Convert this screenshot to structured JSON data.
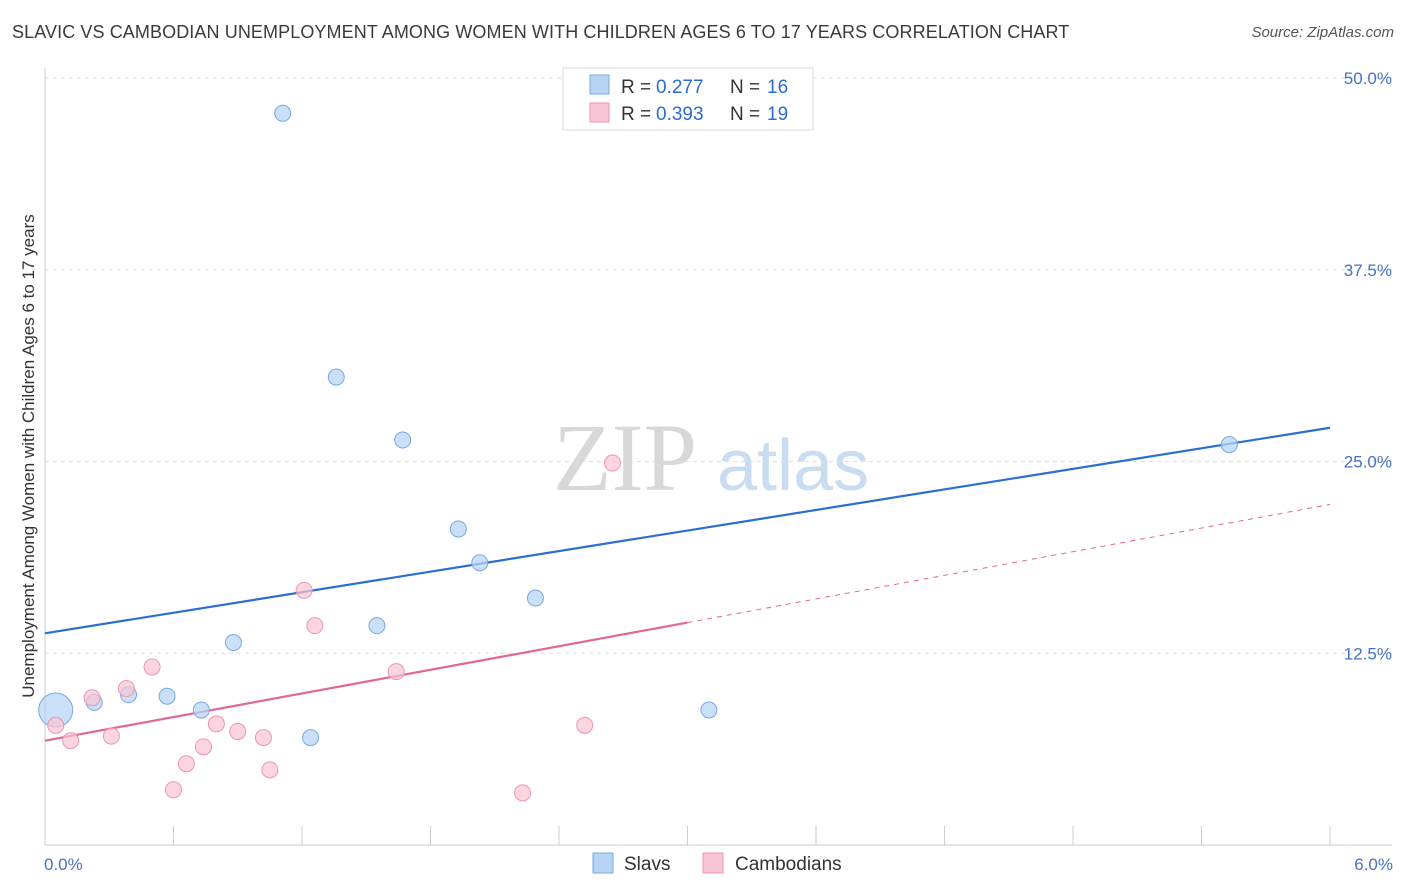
{
  "header": {
    "title": "SLAVIC VS CAMBODIAN UNEMPLOYMENT AMONG WOMEN WITH CHILDREN AGES 6 TO 17 YEARS CORRELATION CHART",
    "source": "Source: ZipAtlas.com"
  },
  "watermark": {
    "zip": "ZIP",
    "atlas": "atlas"
  },
  "legend_top": {
    "rows": [
      {
        "r_label": "R =",
        "r_value": "0.277",
        "n_label": "N =",
        "n_value": "16"
      },
      {
        "r_label": "R =",
        "r_value": "0.393",
        "n_label": "N =",
        "n_value": "19"
      }
    ]
  },
  "legend_bottom": {
    "items": [
      "Slavs",
      "Cambodians"
    ]
  },
  "colors": {
    "slavs_fill": "#b8d4f5",
    "slavs_stroke": "#7aa8e0",
    "slavs_line": "#2a6fd0",
    "camb_fill": "#f9c4d4",
    "camb_stroke": "#ee95b0",
    "camb_line": "#e06896",
    "grid": "#dedede",
    "axis": "#cccccc"
  },
  "chart_data": {
    "type": "scatter",
    "title": "SLAVIC VS CAMBODIAN UNEMPLOYMENT AMONG WOMEN WITH CHILDREN AGES 6 TO 17 YEARS CORRELATION CHART",
    "xlabel": "",
    "ylabel": "Unemployment Among Women with Children Ages 6 to 17 years",
    "xlim": [
      0,
      6
    ],
    "ylim": [
      0,
      50
    ],
    "x_tick_labels": [
      "0.0%",
      "6.0%"
    ],
    "y_ticks": [
      12.5,
      25.0,
      37.5,
      50.0
    ],
    "y_tick_labels": [
      "12.5%",
      "25.0%",
      "37.5%",
      "50.0%"
    ],
    "grid": true,
    "series": [
      {
        "name": "Slavs",
        "R": 0.277,
        "N": 16,
        "points": [
          {
            "x": 0.05,
            "y": 8.8,
            "big": true
          },
          {
            "x": 0.23,
            "y": 9.3
          },
          {
            "x": 0.39,
            "y": 9.8
          },
          {
            "x": 0.57,
            "y": 9.7
          },
          {
            "x": 0.73,
            "y": 8.8
          },
          {
            "x": 0.88,
            "y": 13.2
          },
          {
            "x": 1.11,
            "y": 47.7
          },
          {
            "x": 1.24,
            "y": 7.0
          },
          {
            "x": 1.36,
            "y": 30.5
          },
          {
            "x": 1.55,
            "y": 14.3
          },
          {
            "x": 1.67,
            "y": 26.4
          },
          {
            "x": 1.93,
            "y": 20.6
          },
          {
            "x": 2.03,
            "y": 18.4
          },
          {
            "x": 2.29,
            "y": 16.1
          },
          {
            "x": 3.1,
            "y": 8.8
          },
          {
            "x": 5.53,
            "y": 26.1
          }
        ],
        "trend": {
          "x1": 0.0,
          "y1": 13.8,
          "x2": 6.0,
          "y2": 27.2
        }
      },
      {
        "name": "Cambodians",
        "R": 0.393,
        "N": 19,
        "points": [
          {
            "x": 0.05,
            "y": 7.8
          },
          {
            "x": 0.12,
            "y": 6.8
          },
          {
            "x": 0.22,
            "y": 9.6
          },
          {
            "x": 0.31,
            "y": 7.1
          },
          {
            "x": 0.38,
            "y": 10.2
          },
          {
            "x": 0.5,
            "y": 11.6
          },
          {
            "x": 0.6,
            "y": 3.6
          },
          {
            "x": 0.66,
            "y": 5.3
          },
          {
            "x": 0.74,
            "y": 6.4
          },
          {
            "x": 0.8,
            "y": 7.9
          },
          {
            "x": 0.9,
            "y": 7.4
          },
          {
            "x": 1.02,
            "y": 7.0
          },
          {
            "x": 1.05,
            "y": 4.9
          },
          {
            "x": 1.21,
            "y": 16.6
          },
          {
            "x": 1.26,
            "y": 14.3
          },
          {
            "x": 1.64,
            "y": 11.3
          },
          {
            "x": 2.23,
            "y": 3.4
          },
          {
            "x": 2.52,
            "y": 7.8
          },
          {
            "x": 2.65,
            "y": 24.9
          }
        ],
        "trend": {
          "x1": 0.0,
          "y1": 6.8,
          "x2": 3.0,
          "y2": 14.5
        },
        "trend_dashed": {
          "x1": 3.0,
          "y1": 14.5,
          "x2": 6.0,
          "y2": 22.2
        }
      }
    ]
  }
}
